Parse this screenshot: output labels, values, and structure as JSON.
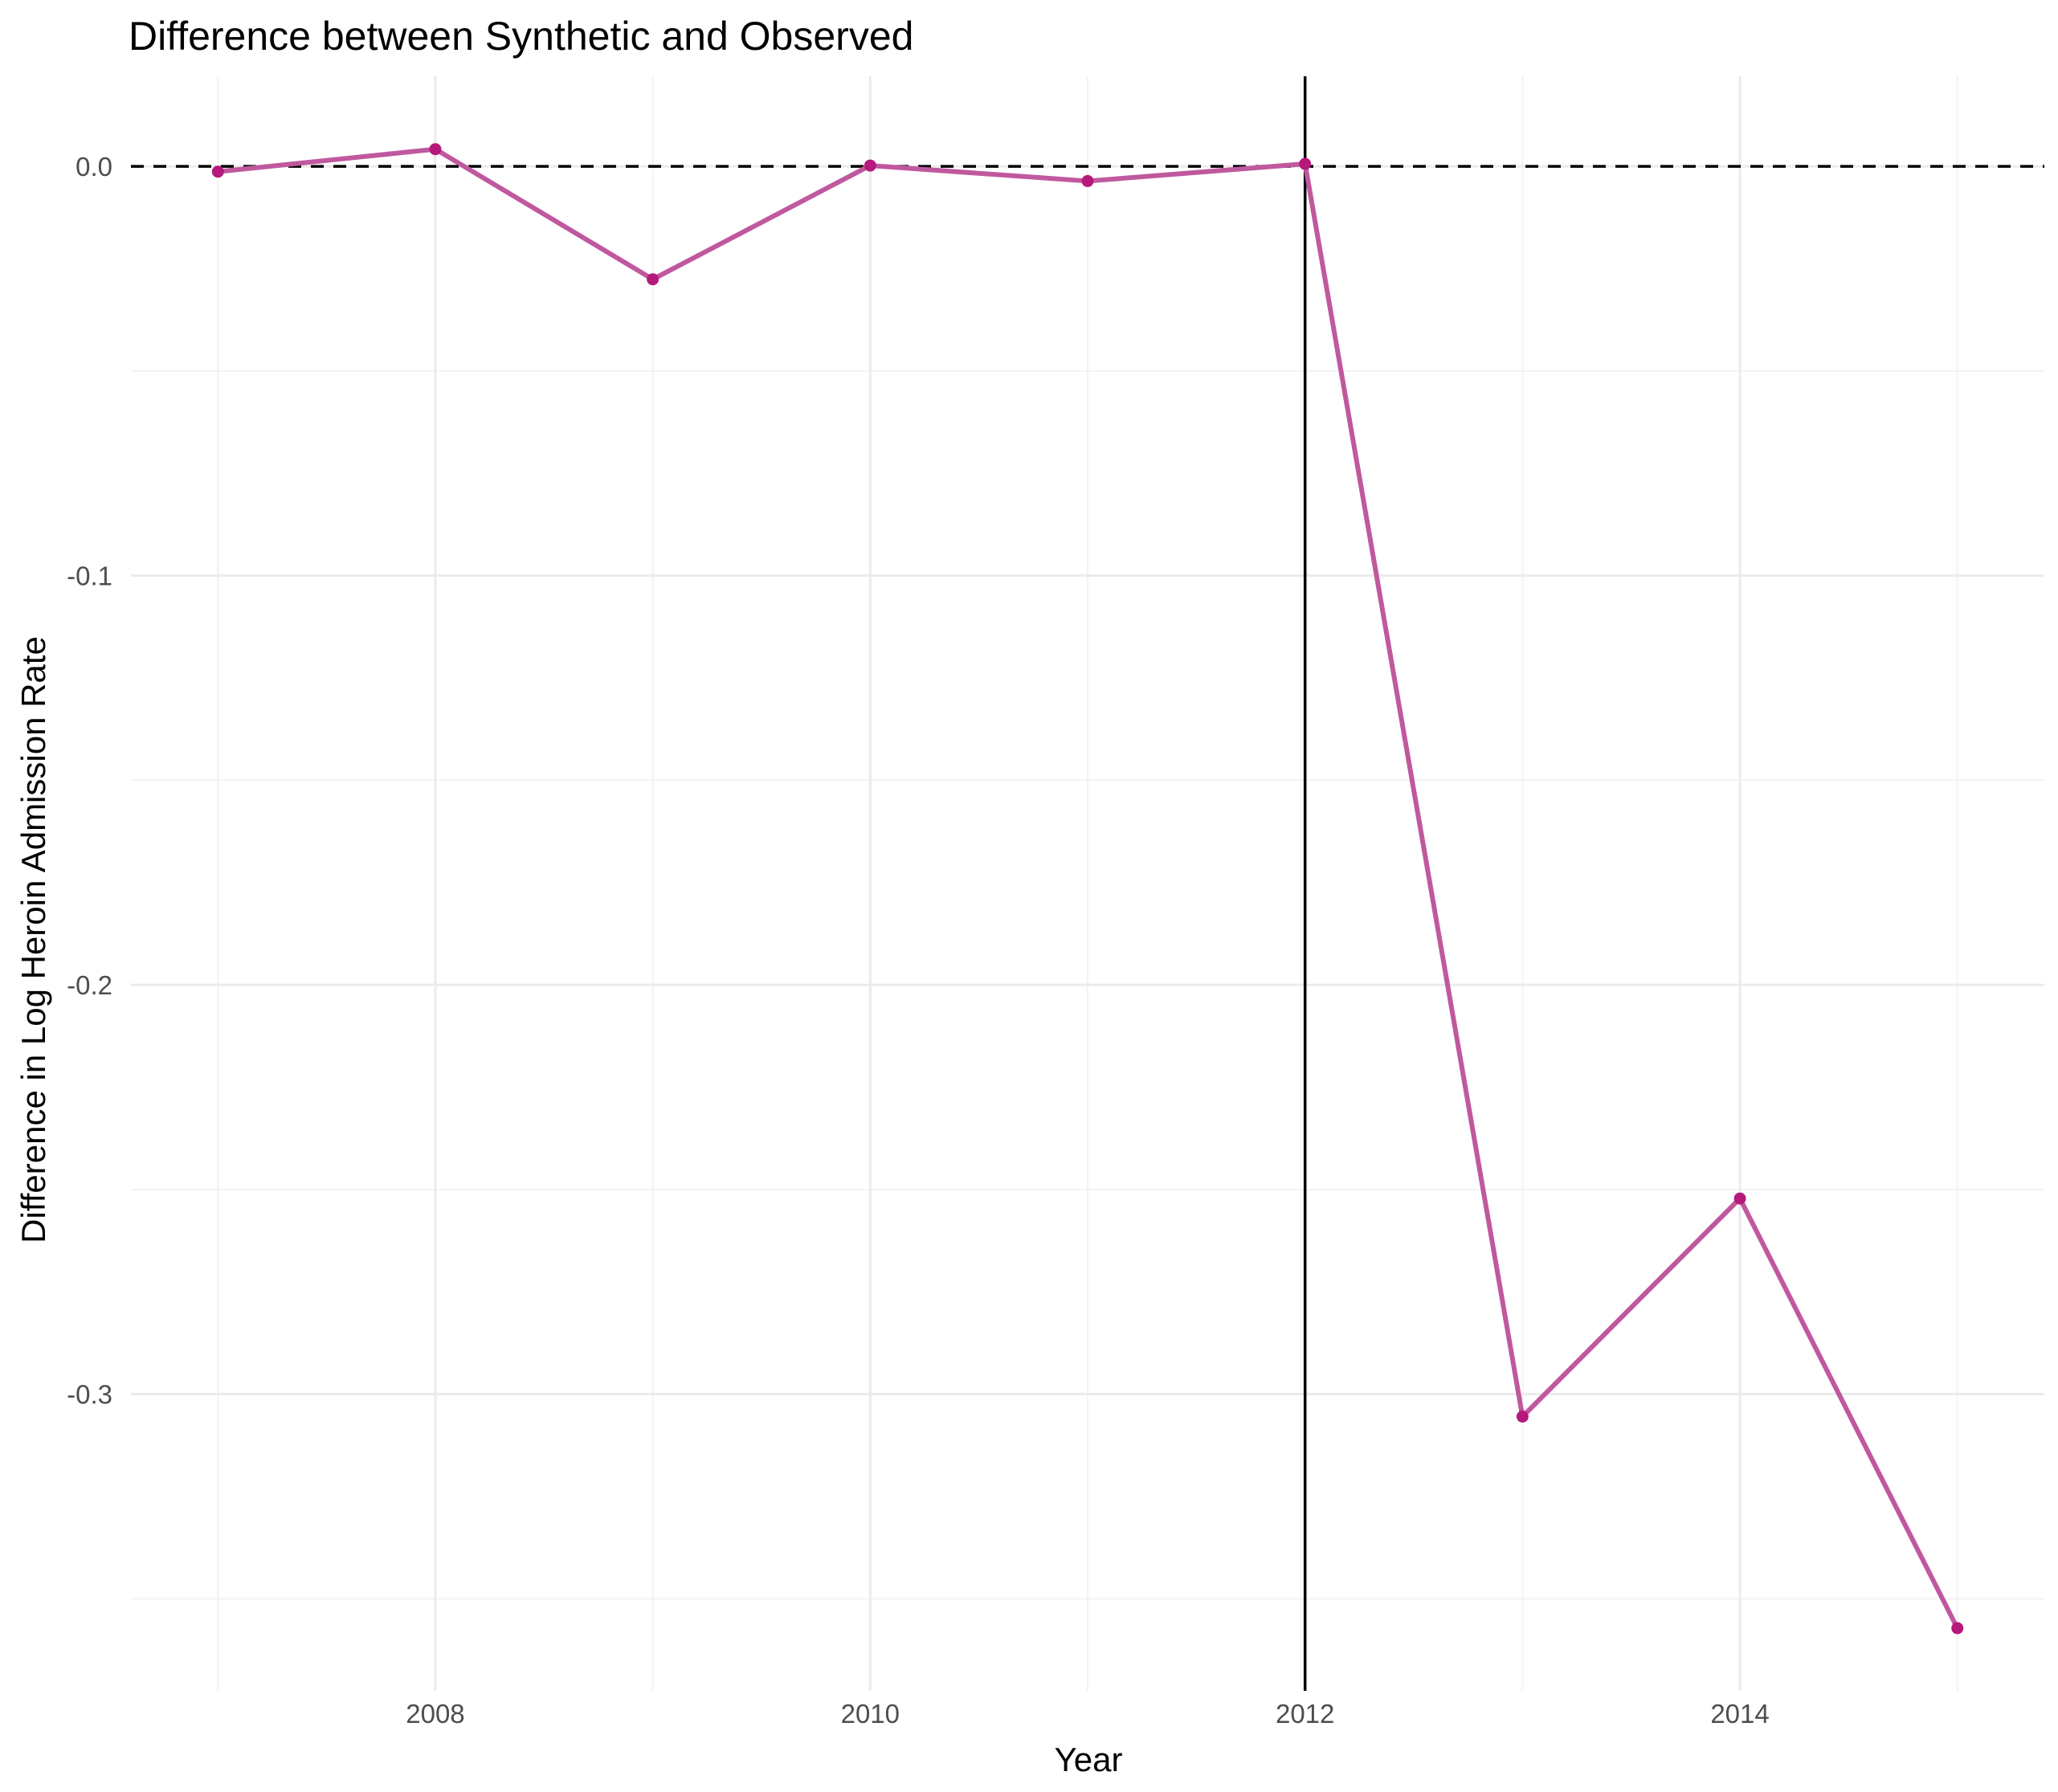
{
  "chart_data": {
    "type": "line",
    "title": "Difference between Synthetic and Observed",
    "xlabel": "Year",
    "ylabel": "Difference in Log Heroin Admission Rate",
    "x_ticks": [
      2008,
      2010,
      2012,
      2014
    ],
    "y_ticks": [
      0.0,
      -0.1,
      -0.2,
      -0.3
    ],
    "y_tick_labels": [
      "0.0",
      "-0.1",
      "-0.2",
      "-0.3"
    ],
    "xlim": [
      2006.6,
      2015.4
    ],
    "ylim": [
      -0.3725,
      0.022
    ],
    "grid": true,
    "legend": "none",
    "series": [
      {
        "x": [
          2007,
          2008,
          2009,
          2010,
          2011,
          2012,
          2013,
          2014,
          2015
        ],
        "values": [
          -0.0013,
          0.0042,
          -0.0276,
          0.0002,
          -0.0036,
          0.0006,
          -0.3055,
          -0.2522,
          -0.3572
        ],
        "color": "#c0589f",
        "point_color": "#b5197c"
      }
    ],
    "reference_lines": [
      {
        "orientation": "horizontal",
        "value": 0.0,
        "style": "dashed",
        "color": "#000000"
      },
      {
        "orientation": "vertical",
        "value": 2012,
        "style": "solid",
        "color": "#000000"
      }
    ]
  }
}
